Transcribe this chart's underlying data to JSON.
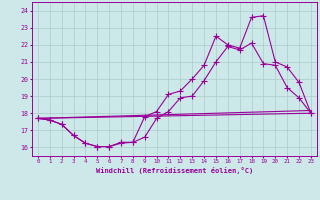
{
  "xlabel": "Windchill (Refroidissement éolien,°C)",
  "bg_color": "#cce8e8",
  "grid_color": "#aacccc",
  "line_color": "#990099",
  "x_ticks": [
    0,
    1,
    2,
    3,
    4,
    5,
    6,
    7,
    8,
    9,
    10,
    11,
    12,
    13,
    14,
    15,
    16,
    17,
    18,
    19,
    20,
    21,
    22,
    23
  ],
  "ylim": [
    15.5,
    24.5
  ],
  "xlim": [
    -0.5,
    23.5
  ],
  "yticks": [
    16,
    17,
    18,
    19,
    20,
    21,
    22,
    23,
    24
  ],
  "line1_x": [
    0,
    1,
    2,
    3,
    4,
    5,
    6,
    7,
    8,
    9,
    10,
    11,
    12,
    13,
    14,
    15,
    16,
    17,
    18,
    19,
    20,
    21,
    22,
    23
  ],
  "line1_y": [
    17.7,
    17.6,
    17.35,
    16.7,
    16.25,
    16.05,
    16.05,
    16.3,
    16.3,
    17.8,
    18.1,
    19.1,
    19.3,
    20.0,
    20.8,
    22.5,
    22.0,
    21.8,
    23.6,
    23.7,
    21.0,
    20.7,
    19.8,
    18.0
  ],
  "line2_x": [
    0,
    1,
    2,
    3,
    4,
    5,
    6,
    7,
    8,
    9,
    10,
    11,
    12,
    13,
    14,
    15,
    16,
    17,
    18,
    19,
    20,
    21,
    22,
    23
  ],
  "line2_y": [
    17.7,
    17.6,
    17.35,
    16.7,
    16.25,
    16.05,
    16.05,
    16.25,
    16.3,
    16.6,
    17.7,
    18.1,
    18.9,
    19.0,
    19.9,
    21.0,
    21.9,
    21.7,
    22.1,
    20.9,
    20.8,
    19.5,
    18.9,
    18.0
  ],
  "line3_x": [
    0,
    23
  ],
  "line3_y": [
    17.7,
    18.0
  ],
  "line4_x": [
    0,
    1,
    2,
    3,
    4,
    5,
    6,
    7,
    8,
    9,
    10,
    11,
    12,
    13,
    14,
    15,
    16,
    17,
    18,
    19,
    20,
    21,
    22,
    23
  ],
  "line4_y": [
    17.7,
    17.72,
    17.74,
    17.76,
    17.78,
    17.8,
    17.82,
    17.84,
    17.86,
    17.88,
    17.9,
    17.92,
    17.94,
    17.96,
    17.98,
    18.0,
    18.02,
    18.04,
    18.06,
    18.08,
    18.1,
    18.12,
    18.14,
    18.16
  ]
}
